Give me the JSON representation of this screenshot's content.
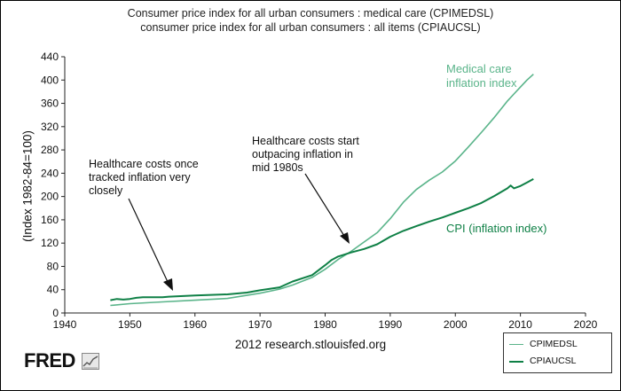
{
  "chart_data": {
    "type": "line",
    "title": "Consumer price index for all urban consumers : medical care (CPIMEDSL)",
    "subtitle": "consumer price index for all urban consumers : all items (CPIAUCSL)",
    "xlabel": "",
    "ylabel": "(Index 1982-84=100)",
    "xlim": [
      1940,
      2020
    ],
    "ylim": [
      0,
      440
    ],
    "x_ticks": [
      1940,
      1950,
      1960,
      1970,
      1980,
      1990,
      2000,
      2010,
      2020
    ],
    "y_ticks": [
      0,
      40,
      80,
      120,
      160,
      200,
      240,
      280,
      320,
      360,
      400,
      440
    ],
    "grid": false,
    "legend_position": "bottom-right",
    "series": [
      {
        "name": "CPIMEDSL",
        "color": "#5ab48a",
        "x": [
          1947,
          1950,
          1955,
          1960,
          1965,
          1970,
          1973,
          1975,
          1978,
          1980,
          1982,
          1984,
          1986,
          1988,
          1990,
          1992,
          1994,
          1996,
          1998,
          2000,
          2002,
          2004,
          2006,
          2008,
          2009,
          2010,
          2011,
          2012
        ],
        "values": [
          13,
          16,
          19,
          22,
          25,
          34,
          41,
          48,
          61,
          75,
          92,
          106,
          122,
          138,
          162,
          190,
          212,
          228,
          242,
          261,
          285,
          310,
          336,
          364,
          376,
          388,
          400,
          410
        ]
      },
      {
        "name": "CPIAUCSL",
        "color": "#0f8046",
        "x": [
          1947,
          1948,
          1949,
          1950,
          1951,
          1952,
          1955,
          1956,
          1960,
          1965,
          1968,
          1970,
          1973,
          1975,
          1978,
          1980,
          1981,
          1982,
          1984,
          1986,
          1988,
          1990,
          1992,
          1994,
          1996,
          1998,
          2000,
          2002,
          2004,
          2006,
          2008,
          2008.5,
          2009,
          2010,
          2011,
          2012
        ],
        "values": [
          22,
          24,
          23,
          24,
          26,
          27,
          27,
          28,
          30,
          32,
          35,
          39,
          44,
          54,
          65,
          82,
          91,
          97,
          104,
          110,
          118,
          131,
          141,
          149,
          157,
          164,
          172,
          180,
          189,
          201,
          214,
          219,
          214,
          218,
          224,
          230
        ]
      }
    ],
    "annotations": [
      {
        "text_lines": [
          "Consumer price index for all urban consumers : medical care (CPIMEDSL)"
        ]
      },
      {
        "lines": [
          "Healthcare costs once",
          "tracked inflation very",
          "closely"
        ]
      },
      {
        "lines": [
          "Healthcare costs start",
          "outpacing inflation in",
          "mid 1980s"
        ]
      },
      {
        "lines": [
          "Medical care",
          "inflation index"
        ]
      },
      {
        "lines": [
          "CPI (inflation index)"
        ]
      }
    ]
  },
  "source_text": "2012 research.stlouisfed.org",
  "logo_text": "FRED",
  "legend": [
    {
      "label": "CPIMEDSL",
      "color": "#5ab48a"
    },
    {
      "label": "CPIAUCSL",
      "color": "#0f8046"
    }
  ],
  "colors": {
    "medical": "#5ab48a",
    "cpi": "#0f8046",
    "axis": "#222222"
  }
}
